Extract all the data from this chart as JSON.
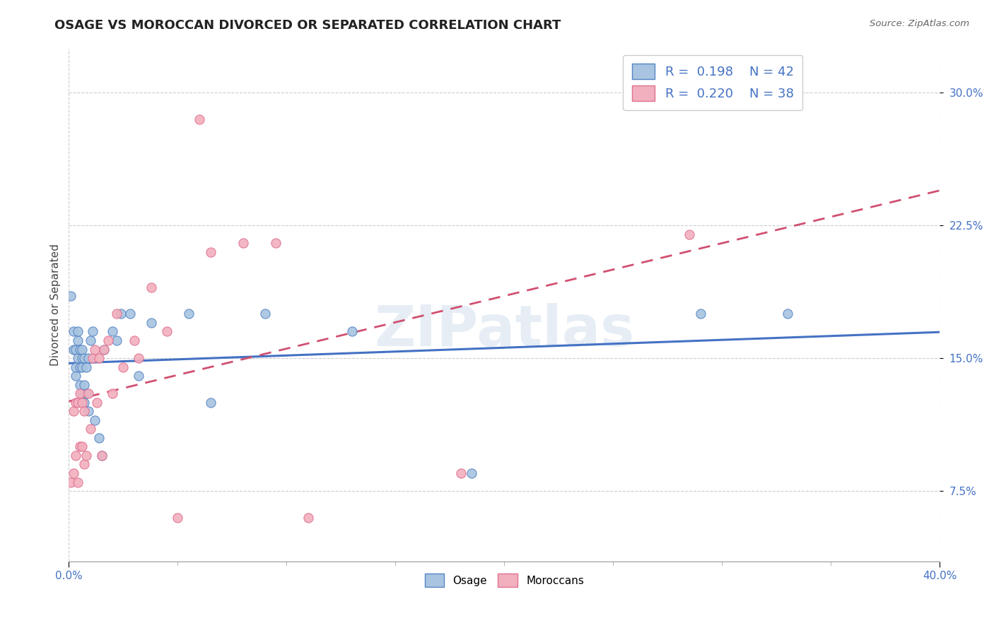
{
  "title": "OSAGE VS MOROCCAN DIVORCED OR SEPARATED CORRELATION CHART",
  "source": "Source: ZipAtlas.com",
  "ylabel": "Divorced or Separated",
  "xlabel_ticks_labels": [
    "0.0%",
    "40.0%"
  ],
  "xlabel_ticks_vals": [
    0.0,
    0.4
  ],
  "ylabel_ticks": [
    "7.5%",
    "15.0%",
    "22.5%",
    "30.0%"
  ],
  "ylabel_vals": [
    0.075,
    0.15,
    0.225,
    0.3
  ],
  "xmin": 0.0,
  "xmax": 0.4,
  "ymin": 0.035,
  "ymax": 0.325,
  "watermark": "ZIPatlas",
  "legend_blue_R": "0.198",
  "legend_blue_N": "42",
  "legend_pink_R": "0.220",
  "legend_pink_N": "38",
  "legend_label_osage": "Osage",
  "legend_label_moroccan": "Moroccans",
  "blue_fill": "#a8c4e0",
  "pink_fill": "#f2b0be",
  "blue_edge": "#5585c5",
  "pink_edge": "#e07090",
  "blue_line": "#4472C4",
  "pink_line": "#D05070",
  "osage_x": [
    0.001,
    0.002,
    0.002,
    0.003,
    0.003,
    0.003,
    0.004,
    0.004,
    0.004,
    0.005,
    0.005,
    0.005,
    0.006,
    0.006,
    0.006,
    0.006,
    0.007,
    0.007,
    0.007,
    0.008,
    0.008,
    0.009,
    0.009,
    0.01,
    0.011,
    0.012,
    0.014,
    0.015,
    0.016,
    0.02,
    0.022,
    0.024,
    0.028,
    0.032,
    0.038,
    0.055,
    0.065,
    0.09,
    0.13,
    0.185,
    0.29,
    0.33
  ],
  "osage_y": [
    0.185,
    0.155,
    0.165,
    0.14,
    0.145,
    0.155,
    0.15,
    0.16,
    0.165,
    0.135,
    0.145,
    0.155,
    0.13,
    0.145,
    0.15,
    0.155,
    0.125,
    0.135,
    0.15,
    0.13,
    0.145,
    0.12,
    0.15,
    0.16,
    0.165,
    0.115,
    0.105,
    0.095,
    0.155,
    0.165,
    0.16,
    0.175,
    0.175,
    0.14,
    0.17,
    0.175,
    0.125,
    0.175,
    0.165,
    0.085,
    0.175,
    0.175
  ],
  "moroccan_x": [
    0.001,
    0.002,
    0.002,
    0.003,
    0.003,
    0.004,
    0.004,
    0.005,
    0.005,
    0.006,
    0.006,
    0.007,
    0.007,
    0.008,
    0.009,
    0.01,
    0.011,
    0.012,
    0.013,
    0.014,
    0.015,
    0.016,
    0.018,
    0.02,
    0.022,
    0.025,
    0.03,
    0.032,
    0.038,
    0.045,
    0.05,
    0.06,
    0.065,
    0.08,
    0.095,
    0.11,
    0.18,
    0.285
  ],
  "moroccan_y": [
    0.08,
    0.085,
    0.12,
    0.095,
    0.125,
    0.08,
    0.125,
    0.1,
    0.13,
    0.1,
    0.125,
    0.09,
    0.12,
    0.095,
    0.13,
    0.11,
    0.15,
    0.155,
    0.125,
    0.15,
    0.095,
    0.155,
    0.16,
    0.13,
    0.175,
    0.145,
    0.16,
    0.15,
    0.19,
    0.165,
    0.06,
    0.285,
    0.21,
    0.215,
    0.215,
    0.06,
    0.085,
    0.22
  ],
  "x_minor_ticks": [
    0.05,
    0.1,
    0.15,
    0.2,
    0.25,
    0.3,
    0.35
  ],
  "grid_color": "#cccccc",
  "title_fontsize": 13,
  "axis_label_fontsize": 11,
  "tick_fontsize": 11,
  "legend_fontsize": 13
}
